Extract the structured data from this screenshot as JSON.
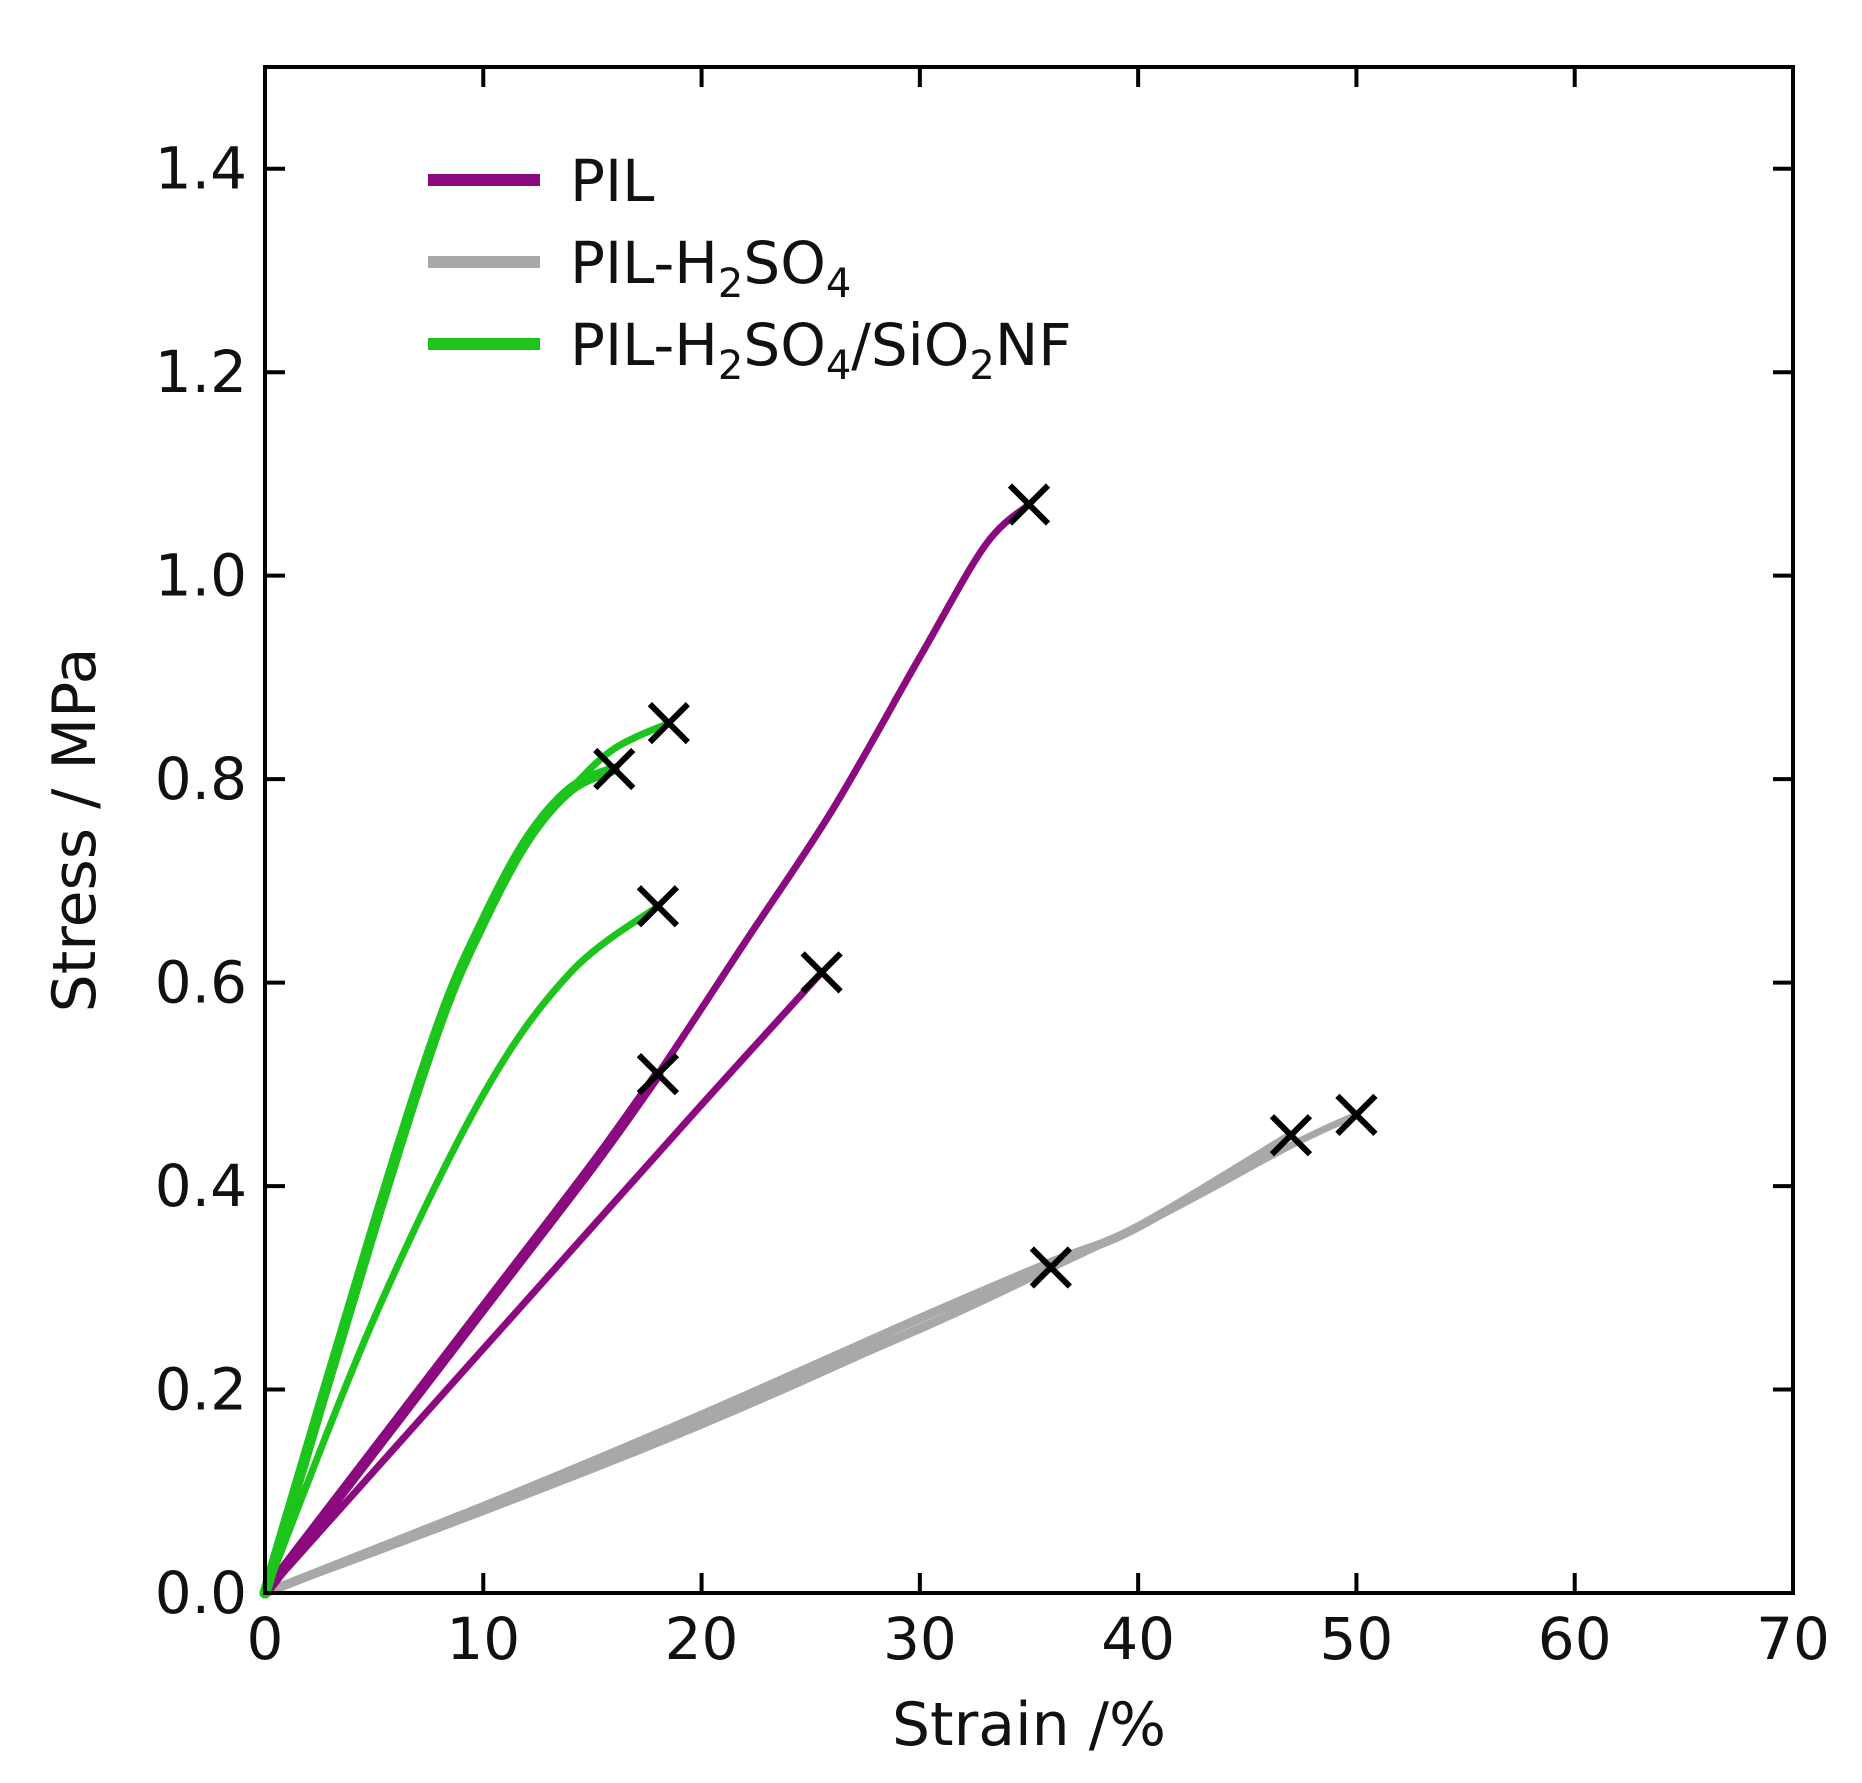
{
  "chart_data": {
    "type": "line",
    "title": "",
    "xlabel": "Strain /%",
    "ylabel": "Stress / MPa",
    "xlim": [
      0,
      70
    ],
    "ylim": [
      0,
      1.5
    ],
    "x_ticks": [
      "0",
      "10",
      "20",
      "30",
      "40",
      "50",
      "60",
      "70"
    ],
    "y_ticks": [
      "0.0",
      "0.2",
      "0.4",
      "0.6",
      "0.8",
      "1.0",
      "1.2",
      "1.4"
    ],
    "grid": false,
    "legend_position": "top-left",
    "legend": [
      {
        "name": "PIL",
        "color": "#8B0A7F",
        "parts": [
          {
            "t": "PIL"
          }
        ]
      },
      {
        "name": "PIL-H2SO4",
        "color": "#A8A8A8",
        "parts": [
          {
            "t": "PIL-H"
          },
          {
            "t": "2",
            "sub": true
          },
          {
            "t": "SO"
          },
          {
            "t": "4",
            "sub": true
          }
        ]
      },
      {
        "name": "PIL-H2SO4/SiO2NF",
        "color": "#1CC41C",
        "parts": [
          {
            "t": "PIL-H"
          },
          {
            "t": "2",
            "sub": true
          },
          {
            "t": "SO"
          },
          {
            "t": "4",
            "sub": true
          },
          {
            "t": "/SiO"
          },
          {
            "t": "2",
            "sub": true
          },
          {
            "t": "NF"
          }
        ]
      }
    ],
    "series": [
      {
        "name": "PIL",
        "color": "#8B0A7F",
        "width": 7,
        "x": [
          0,
          5,
          10,
          15,
          18,
          22,
          26,
          30,
          33,
          35
        ],
        "y": [
          0,
          0.14,
          0.28,
          0.42,
          0.51,
          0.64,
          0.77,
          0.92,
          1.03,
          1.07
        ],
        "break": {
          "x": 35,
          "y": 1.07
        }
      },
      {
        "name": "PIL",
        "color": "#8B0A7F",
        "width": 11,
        "x": [
          0,
          5,
          10,
          15,
          18
        ],
        "y": [
          0,
          0.14,
          0.28,
          0.42,
          0.51
        ],
        "break": {
          "x": 18,
          "y": 0.51
        }
      },
      {
        "name": "PIL",
        "color": "#8B0A7F",
        "width": 7,
        "x": [
          0,
          5,
          10,
          15,
          20,
          25.5
        ],
        "y": [
          0,
          0.12,
          0.24,
          0.36,
          0.48,
          0.61
        ],
        "break": {
          "x": 25.5,
          "y": 0.61
        }
      },
      {
        "name": "PIL-H2SO4",
        "color": "#A8A8A8",
        "width": 9,
        "x": [
          0,
          10,
          20,
          30,
          36,
          40,
          47
        ],
        "y": [
          0,
          0.085,
          0.175,
          0.27,
          0.325,
          0.36,
          0.45
        ],
        "break": {
          "x": 47,
          "y": 0.45
        }
      },
      {
        "name": "PIL-H2SO4",
        "color": "#A8A8A8",
        "width": 9,
        "x": [
          0,
          10,
          20,
          30,
          36
        ],
        "y": [
          0,
          0.085,
          0.17,
          0.26,
          0.32
        ],
        "break": {
          "x": 36,
          "y": 0.32
        }
      },
      {
        "name": "PIL-H2SO4",
        "color": "#A8A8A8",
        "width": 7,
        "x": [
          0,
          10,
          20,
          30,
          40,
          47,
          50
        ],
        "y": [
          0,
          0.08,
          0.165,
          0.26,
          0.36,
          0.44,
          0.47
        ],
        "break": {
          "x": 50,
          "y": 0.47
        }
      },
      {
        "name": "PIL-H2SO4/SiO2NF",
        "color": "#1CC41C",
        "width": 11,
        "x": [
          0,
          5,
          8,
          10,
          12,
          14,
          16
        ],
        "y": [
          0,
          0.36,
          0.56,
          0.66,
          0.74,
          0.79,
          0.81
        ],
        "break": {
          "x": 16,
          "y": 0.81
        }
      },
      {
        "name": "PIL-H2SO4/SiO2NF",
        "color": "#1CC41C",
        "width": 7,
        "x": [
          0,
          5,
          8,
          10,
          12,
          14,
          16,
          18.5
        ],
        "y": [
          0,
          0.36,
          0.56,
          0.66,
          0.74,
          0.79,
          0.83,
          0.855
        ],
        "break": {
          "x": 18.5,
          "y": 0.855
        }
      },
      {
        "name": "PIL-H2SO4/SiO2NF",
        "color": "#1CC41C",
        "width": 7,
        "x": [
          0,
          5,
          10,
          14,
          18
        ],
        "y": [
          0,
          0.27,
          0.49,
          0.61,
          0.675
        ],
        "break": {
          "x": 18,
          "y": 0.675
        }
      }
    ]
  }
}
